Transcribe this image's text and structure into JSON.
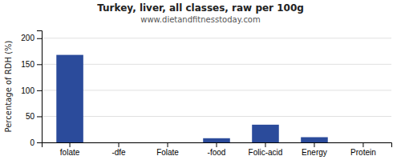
{
  "chart_data": {
    "type": "bar",
    "title": "Turkey, liver, all classes, raw per 100g",
    "subtitle": "www.dietandfitnesstoday.com",
    "categories": [
      "folate",
      "-dfe",
      "Folate",
      "-food",
      "Folic-acid",
      "Energy",
      "Protein"
    ],
    "values": [
      168,
      0,
      0,
      8,
      34,
      10,
      0
    ],
    "color": "#2b4b9b",
    "ylabel": "Percentage of RDH (%)",
    "ylim": [
      0,
      215
    ],
    "yticks": [
      0,
      50,
      100,
      150,
      200
    ],
    "grid": true
  }
}
